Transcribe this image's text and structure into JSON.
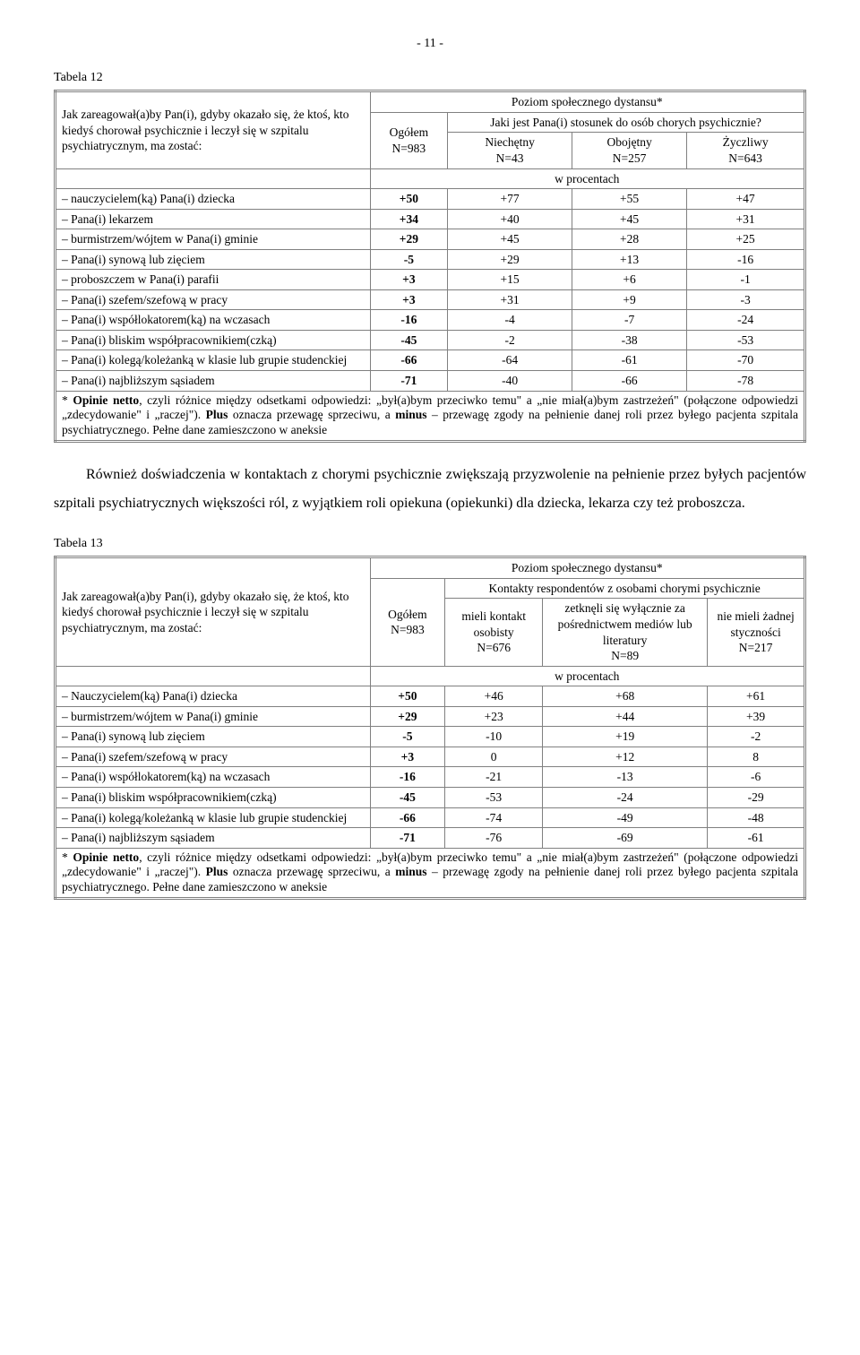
{
  "pageNumber": "- 11 -",
  "table12": {
    "label": "Tabela 12",
    "questionStem": "Jak zareagował(a)by Pan(i), gdyby okazało się, że ktoś, kto kiedyś chorował psychicznie i leczył się w szpitalu psychiatrycznym, ma zostać:",
    "superHeader": "Poziom społecznego dystansu*",
    "subHeader": "Jaki jest Pana(i) stosunek do osób chorych psychicznie?",
    "ogolLabel": "Ogółem",
    "ogolN": "N=983",
    "cols": [
      {
        "label": "Niechętny",
        "n": "N=43"
      },
      {
        "label": "Obojętny",
        "n": "N=257"
      },
      {
        "label": "Życzliwy",
        "n": "N=643"
      }
    ],
    "percentLabel": "w procentach",
    "rows": [
      {
        "label": "– nauczycielem(ką) Pana(i) dziecka",
        "b": true,
        "v": [
          "+50",
          "+77",
          "+55",
          "+47"
        ]
      },
      {
        "label": "– Pana(i) lekarzem",
        "b": true,
        "v": [
          "+34",
          "+40",
          "+45",
          "+31"
        ]
      },
      {
        "label": "– burmistrzem/wójtem w Pana(i) gminie",
        "b": true,
        "v": [
          "+29",
          "+45",
          "+28",
          "+25"
        ]
      },
      {
        "label": "– Pana(i) synową lub zięciem",
        "b": true,
        "v": [
          "-5",
          "+29",
          "+13",
          "-16"
        ]
      },
      {
        "label": "– proboszczem w Pana(i) parafii",
        "b": true,
        "v": [
          "+3",
          "+15",
          "+6",
          "-1"
        ]
      },
      {
        "label": "– Pana(i) szefem/szefową w pracy",
        "b": true,
        "v": [
          "+3",
          "+31",
          "+9",
          "-3"
        ]
      },
      {
        "label": "– Pana(i) współlokatorem(ką) na wczasach",
        "b": true,
        "v": [
          "-16",
          "-4",
          "-7",
          "-24"
        ]
      },
      {
        "label": "– Pana(i) bliskim współpracownikiem(czką)",
        "b": true,
        "v": [
          "-45",
          "-2",
          "-38",
          "-53"
        ]
      },
      {
        "label": "– Pana(i) kolegą/koleżanką w klasie lub grupie studenckiej",
        "b": true,
        "v": [
          "-66",
          "-64",
          "-61",
          "-70"
        ]
      },
      {
        "label": "– Pana(i) najbliższym sąsiadem",
        "b": true,
        "v": [
          "-71",
          "-40",
          "-66",
          "-78"
        ]
      }
    ],
    "footnoteHtml": "* <b>Opinie netto</b>, czyli różnice między odsetkami odpowiedzi: „był(a)bym przeciwko temu\" a „nie miał(a)bym zastrzeżeń\" (połączone odpowiedzi „zdecydowanie\" i „raczej\"). <b>Plus</b> oznacza przewagę sprzeciwu, a <b>minus</b> – przewagę zgody na pełnienie danej roli przez byłego pacjenta szpitala psychiatrycznego. Pełne dane zamieszczono w aneksie"
  },
  "midParagraph": "Również doświadczenia w kontaktach z chorymi psychicznie zwiększają przyzwolenie na pełnienie przez byłych pacjentów szpitali psychiatrycznych większości ról, z wyjątkiem roli opiekuna (opiekunki) dla dziecka, lekarza czy też proboszcza.",
  "table13": {
    "label": "Tabela 13",
    "questionStem": "Jak zareagował(a)by Pan(i), gdyby okazało się, że ktoś, kto kiedyś chorował psychicznie i leczył się w szpitalu psychiatrycznym, ma zostać:",
    "superHeader": "Poziom społecznego dystansu*",
    "subHeader": "Kontakty respondentów z osobami chorymi psychicznie",
    "ogolLabel": "Ogółem",
    "ogolN": "N=983",
    "cols": [
      {
        "label": "mieli kontakt osobisty",
        "n": "N=676"
      },
      {
        "label": "zetknęli się wyłącznie za pośrednictwem mediów lub literatury",
        "n": "N=89"
      },
      {
        "label": "nie mieli żadnej styczności",
        "n": "N=217"
      }
    ],
    "percentLabel": "w procentach",
    "rows": [
      {
        "label": "– Nauczycielem(ką) Pana(i) dziecka",
        "b": true,
        "v": [
          "+50",
          "+46",
          "+68",
          "+61"
        ]
      },
      {
        "label": "– burmistrzem/wójtem w Pana(i) gminie",
        "b": true,
        "v": [
          "+29",
          "+23",
          "+44",
          "+39"
        ]
      },
      {
        "label": "– Pana(i) synową lub zięciem",
        "b": true,
        "v": [
          "-5",
          "-10",
          "+19",
          "-2"
        ]
      },
      {
        "label": "– Pana(i) szefem/szefową w pracy",
        "b": true,
        "v": [
          "+3",
          "0",
          "+12",
          "8"
        ]
      },
      {
        "label": "– Pana(i) współlokatorem(ką) na wczasach",
        "b": true,
        "v": [
          "-16",
          "-21",
          "-13",
          "-6"
        ]
      },
      {
        "label": "– Pana(i) bliskim współpracownikiem(czką)",
        "b": true,
        "v": [
          "-45",
          "-53",
          "-24",
          "-29"
        ]
      },
      {
        "label": "– Pana(i) kolegą/koleżanką w klasie lub grupie studenckiej",
        "b": true,
        "v": [
          "-66",
          "-74",
          "-49",
          "-48"
        ]
      },
      {
        "label": "– Pana(i) najbliższym sąsiadem",
        "b": true,
        "v": [
          "-71",
          "-76",
          "-69",
          "-61"
        ]
      }
    ],
    "footnoteHtml": "* <b>Opinie netto</b>, czyli różnice między odsetkami odpowiedzi: „był(a)bym przeciwko temu\" a „nie miał(a)bym zastrzeżeń\" (połączone odpowiedzi „zdecydowanie\" i „raczej\"). <b>Plus</b> oznacza przewagę sprzeciwu, a <b>minus</b> – przewagę zgody na pełnienie danej roli przez byłego pacjenta szpitala psychiatrycznego. Pełne dane zamieszczono w aneksie"
  }
}
